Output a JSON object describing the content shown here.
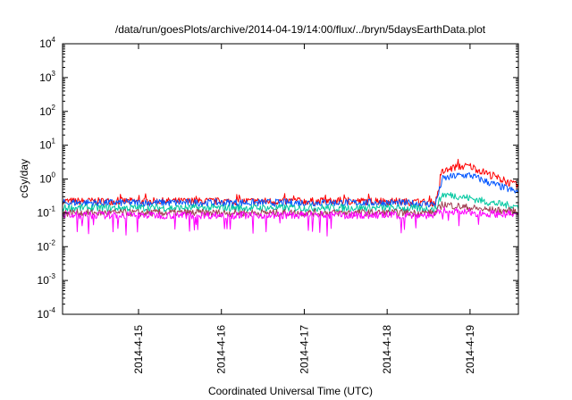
{
  "chart_data": {
    "type": "line",
    "title": "/data/run/goesPlots/archive/2014-04-19/14:00/flux/../bryn/5daysEarthData.plot",
    "xlabel": "Coordinated Universal Time (UTC)",
    "ylabel": "cGy/day",
    "yscale": "log",
    "ylim": [
      0.0001,
      10000
    ],
    "xlim": [
      "2014-04-14 02:00",
      "2014-04-19 14:00"
    ],
    "yticks": [
      {
        "base": "10",
        "exp": "-4",
        "value": 0.0001
      },
      {
        "base": "10",
        "exp": "-3",
        "value": 0.001
      },
      {
        "base": "10",
        "exp": "-2",
        "value": 0.01
      },
      {
        "base": "10",
        "exp": "-1",
        "value": 0.1
      },
      {
        "base": "10",
        "exp": "0",
        "value": 1
      },
      {
        "base": "10",
        "exp": "1",
        "value": 10
      },
      {
        "base": "10",
        "exp": "2",
        "value": 100
      },
      {
        "base": "10",
        "exp": "3",
        "value": 1000
      },
      {
        "base": "10",
        "exp": "4",
        "value": 10000
      }
    ],
    "xticks": [
      {
        "label": "2014-4-15",
        "value": "2014-04-15 00:00"
      },
      {
        "label": "2014-4-16",
        "value": "2014-04-16 00:00"
      },
      {
        "label": "2014-4-17",
        "value": "2014-04-17 00:00"
      },
      {
        "label": "2014-4-18",
        "value": "2014-04-18 00:00"
      },
      {
        "label": "2014-4-19",
        "value": "2014-04-19 00:00"
      }
    ],
    "grid": false,
    "legend": "none",
    "series": [
      {
        "color": "#ff0000",
        "x": [
          "2014-04-14 02:00",
          "2014-04-15 00:00",
          "2014-04-16 00:00",
          "2014-04-17 00:00",
          "2014-04-18 00:00",
          "2014-04-18 14:00",
          "2014-04-18 16:00",
          "2014-04-18 20:00",
          "2014-04-19 00:00",
          "2014-04-19 06:00",
          "2014-04-19 14:00"
        ],
        "y": [
          0.22,
          0.22,
          0.22,
          0.22,
          0.22,
          0.2,
          1.6,
          2.3,
          2.4,
          1.3,
          0.6
        ]
      },
      {
        "color": "#0055ff",
        "x": [
          "2014-04-14 02:00",
          "2014-04-15 00:00",
          "2014-04-16 00:00",
          "2014-04-17 00:00",
          "2014-04-18 00:00",
          "2014-04-18 14:00",
          "2014-04-18 16:00",
          "2014-04-18 20:00",
          "2014-04-19 00:00",
          "2014-04-19 06:00",
          "2014-04-19 14:00"
        ],
        "y": [
          0.2,
          0.2,
          0.2,
          0.2,
          0.2,
          0.18,
          1.0,
          1.25,
          1.3,
          0.75,
          0.4
        ]
      },
      {
        "color": "#00c8a0",
        "x": [
          "2014-04-14 02:00",
          "2014-04-15 00:00",
          "2014-04-16 00:00",
          "2014-04-17 00:00",
          "2014-04-18 00:00",
          "2014-04-18 14:00",
          "2014-04-18 16:00",
          "2014-04-18 20:00",
          "2014-04-19 00:00",
          "2014-04-19 06:00",
          "2014-04-19 14:00"
        ],
        "y": [
          0.14,
          0.14,
          0.14,
          0.14,
          0.14,
          0.13,
          0.35,
          0.32,
          0.27,
          0.2,
          0.15
        ]
      },
      {
        "color": "#a03c50",
        "x": [
          "2014-04-14 02:00",
          "2014-04-15 00:00",
          "2014-04-16 00:00",
          "2014-04-17 00:00",
          "2014-04-18 00:00",
          "2014-04-18 14:00",
          "2014-04-18 16:00",
          "2014-04-18 20:00",
          "2014-04-19 00:00",
          "2014-04-19 06:00",
          "2014-04-19 14:00"
        ],
        "y": [
          0.1,
          0.1,
          0.1,
          0.1,
          0.1,
          0.1,
          0.18,
          0.16,
          0.14,
          0.12,
          0.11
        ]
      },
      {
        "color": "#ff00ff",
        "x": [
          "2014-04-14 02:00",
          "2014-04-15 00:00",
          "2014-04-16 00:00",
          "2014-04-17 00:00",
          "2014-04-18 00:00",
          "2014-04-18 14:00",
          "2014-04-18 16:00",
          "2014-04-18 20:00",
          "2014-04-19 00:00",
          "2014-04-19 06:00",
          "2014-04-19 14:00"
        ],
        "y": [
          0.085,
          0.085,
          0.085,
          0.085,
          0.085,
          0.085,
          0.12,
          0.11,
          0.1,
          0.095,
          0.09
        ]
      }
    ]
  }
}
